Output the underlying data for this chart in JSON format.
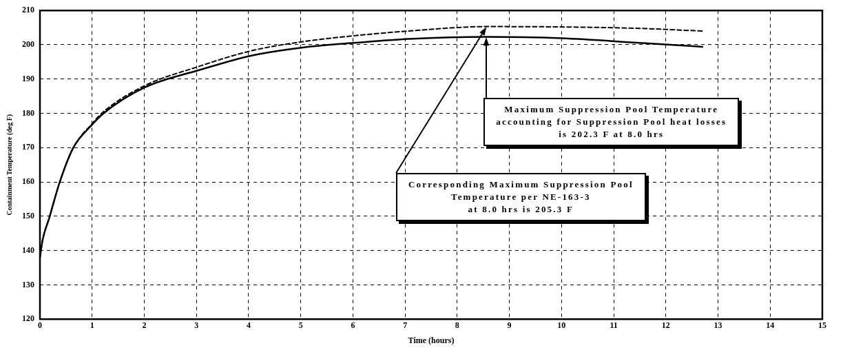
{
  "chart_data": {
    "type": "line",
    "xlabel": "Time (hours)",
    "ylabel": "Containment Temperature (deg F)",
    "xlim": [
      0,
      15
    ],
    "xticks": [
      0,
      1,
      2,
      3,
      4,
      5,
      6,
      7,
      8,
      9,
      10,
      11,
      12,
      13,
      14,
      15
    ],
    "ylim": [
      120,
      210
    ],
    "yticks": [
      120,
      130,
      140,
      150,
      160,
      170,
      180,
      190,
      200,
      210
    ],
    "grid": true,
    "legend": false,
    "marker": "none",
    "series": [
      {
        "color": "#000000",
        "line_style": "solid",
        "x": [
          0,
          0.05,
          0.18,
          0.38,
          0.64,
          1.0,
          1.22,
          2.0,
          3.05,
          4.04,
          5.04,
          6.07,
          7.07,
          8.56,
          10.0,
          11.45,
          12.7
        ],
        "values": [
          138,
          143,
          149.6,
          160,
          170,
          176.7,
          180,
          187.5,
          192.6,
          196.8,
          199.2,
          200.6,
          201.7,
          202.3,
          201.9,
          200.6,
          199.4
        ]
      },
      {
        "color": "#000000",
        "line_style": "dashed",
        "x": [
          0,
          0.05,
          0.18,
          0.38,
          0.64,
          1.0,
          1.22,
          2.0,
          3.05,
          4.04,
          5.04,
          6.07,
          7.07,
          8.56,
          10.0,
          11.45,
          12.7
        ],
        "values": [
          138,
          143,
          149.6,
          160,
          170,
          177,
          180.5,
          188,
          193.7,
          198.2,
          200.9,
          202.7,
          204,
          205.3,
          205.2,
          204.8,
          204
        ]
      }
    ],
    "annotations": [
      "Maximum Suppression Pool Temperature\naccounting for Suppression Pool heat losses\nis 202.3 F at 8.0 hrs",
      "Corresponding Maximum Suppression Pool\nTemperature per NE-163-3\nat 8.0 hrs is 205.3 F"
    ]
  }
}
